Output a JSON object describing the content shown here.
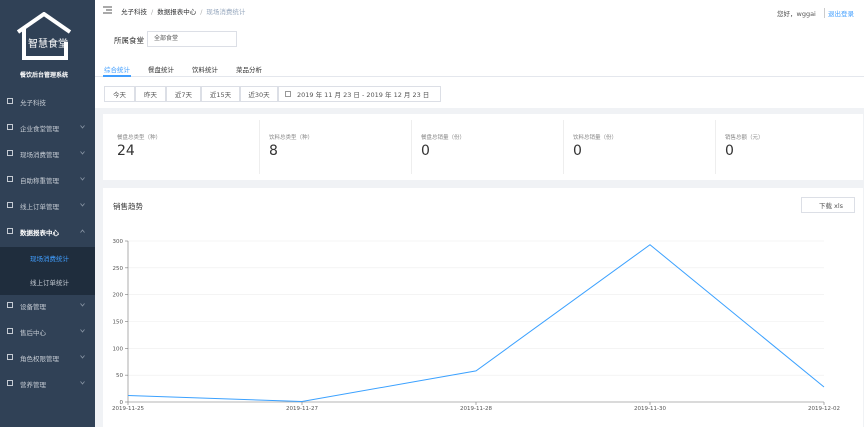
{
  "sidebar": {
    "logo": "智慧食堂",
    "subtitle": "餐饮后台管理系统",
    "menu": [
      {
        "label": "允子科技"
      },
      {
        "label": "企业食堂管理"
      },
      {
        "label": "现场消费管理"
      },
      {
        "label": "自助称重管理"
      },
      {
        "label": "线上订单管理"
      },
      {
        "label": "数据报表中心",
        "children": [
          "现场消费统计",
          "线上订单统计"
        ]
      },
      {
        "label": "设备管理"
      },
      {
        "label": "售后中心"
      },
      {
        "label": "角色权限管理"
      },
      {
        "label": "营养管理"
      }
    ]
  },
  "header": {
    "breadcrumb": [
      "允子科技",
      "数据报表中心",
      "现场消费统计"
    ],
    "separator": "/",
    "greeting": "您好，wggai",
    "logout": "退出登录"
  },
  "filter": {
    "label": "所属食堂",
    "select": "全部食堂"
  },
  "tabs": [
    "综合统计",
    "餐盘统计",
    "饮料统计",
    "菜品分析"
  ],
  "date_buttons": [
    "今天",
    "昨天",
    "近7天",
    "近15天",
    "近30天"
  ],
  "date_range": "2019 年 11 月 23 日 - 2019 年 12 月 23 日",
  "stats": [
    {
      "label": "餐盘总类型（种）",
      "value": 24
    },
    {
      "label": "饮料总类型（种）",
      "value": 8
    },
    {
      "label": "餐盘总销量（份）",
      "value": 0
    },
    {
      "label": "饮料总销量（份）",
      "value": 0
    },
    {
      "label": "销售总额（元）",
      "value": 0
    }
  ],
  "chart_data": {
    "type": "line",
    "title": "销售趋势",
    "download": "下载 xls",
    "categories": [
      "2019-11-25",
      "2019-11-27",
      "2019-11-28",
      "2019-11-30",
      "2019-12-02"
    ],
    "series": [
      {
        "color": "#3ba1ff",
        "values": [
          12,
          1,
          58,
          293,
          28
        ]
      }
    ],
    "ylim": [
      0,
      300
    ],
    "yticks": [
      0,
      50,
      100,
      150,
      200,
      250,
      300
    ],
    "grid": true
  }
}
